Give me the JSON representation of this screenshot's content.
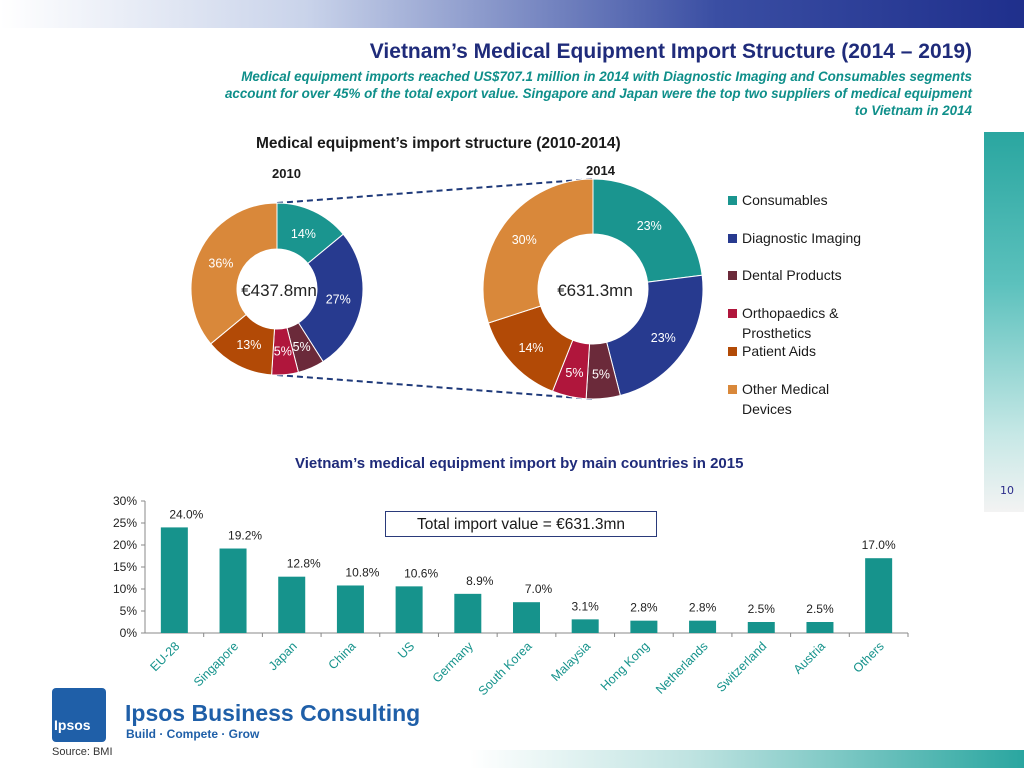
{
  "slide": {
    "title": "Vietnam’s Medical Equipment Import Structure (2014 – 2019)",
    "subtitle_line1": "Medical equipment imports reached US$707.1 million in 2014 with  Diagnostic Imaging and Consumables segments",
    "subtitle_line2": "account for over 45% of the total export value. Singapore and Japan were the top two suppliers of medical equipment",
    "subtitle_line3": "to Vietnam in 2014",
    "page_number": "10",
    "source": "Source: BMI"
  },
  "branding": {
    "logo_text": "Ipsos",
    "company": "Ipsos Business Consulting",
    "tagline": "Build · Compete · Grow"
  },
  "colors": {
    "consumables": "#1a958f",
    "diagnostic": "#273a8f",
    "dental": "#6b2a3a",
    "ortho": "#b0163c",
    "patient": "#b24a06",
    "other": "#d9883a",
    "bar": "#16938c"
  },
  "chart_data": [
    {
      "type": "pie",
      "title": "Medical equipment’s import structure (2010-2014)",
      "year": "2010",
      "center_label": "€437.8mn",
      "categories": [
        "Consumables",
        "Diagnostic Imaging",
        "Dental Products",
        "Orthopaedics & Prosthetics",
        "Patient Aids",
        "Other Medical Devices"
      ],
      "values": [
        14,
        27,
        5,
        5,
        13,
        36
      ],
      "labels": [
        "14%",
        "27%",
        "5%",
        "5%",
        "13%",
        "36%"
      ]
    },
    {
      "type": "pie",
      "year": "2014",
      "center_label": "€631.3mn",
      "categories": [
        "Consumables",
        "Diagnostic Imaging",
        "Dental Products",
        "Orthopaedics & Prosthetics",
        "Patient Aids",
        "Other Medical Devices"
      ],
      "values": [
        23,
        23,
        5,
        5,
        14,
        30
      ],
      "labels": [
        "23%",
        "23%",
        "5%",
        "5%",
        "14%",
        "30%"
      ],
      "legend": [
        "Consumables",
        "Diagnostic Imaging",
        "Dental Products",
        "Orthopaedics &\nProsthetics",
        "Patient Aids",
        "Other Medical\nDevices"
      ]
    },
    {
      "type": "bar",
      "title": "Vietnam’s medical equipment import by main countries in 2015",
      "annotation": "Total import value = €631.3mn",
      "categories": [
        "EU-28",
        "Singapore",
        "Japan",
        "China",
        "US",
        "Germany",
        "South Korea",
        "Malaysia",
        "Hong Kong",
        "Netherlands",
        "Switzerland",
        "Austria",
        "Others"
      ],
      "values": [
        24.0,
        19.2,
        12.8,
        10.8,
        10.6,
        8.9,
        7.0,
        3.1,
        2.8,
        2.8,
        2.5,
        2.5,
        17.0
      ],
      "value_labels": [
        "24.0%",
        "19.2%",
        "12.8%",
        "10.8%",
        "10.6%",
        "8.9%",
        "7.0%",
        "3.1%",
        "2.8%",
        "2.8%",
        "2.5%",
        "2.5%",
        "17.0%"
      ],
      "ylim": [
        0,
        30
      ],
      "yticks": [
        "0%",
        "5%",
        "10%",
        "15%",
        "20%",
        "25%",
        "30%"
      ]
    }
  ]
}
